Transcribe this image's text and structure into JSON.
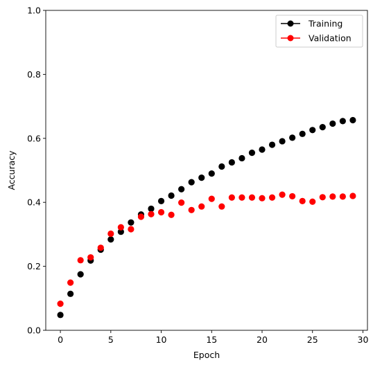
{
  "chart_data": {
    "type": "scatter",
    "title": "",
    "xlabel": "Epoch",
    "ylabel": "Accuracy",
    "xlim": [
      -1.45,
      30.45
    ],
    "ylim": [
      0.0,
      1.0
    ],
    "xticks": [
      0,
      5,
      10,
      15,
      20,
      25,
      30
    ],
    "yticks": [
      0.0,
      0.2,
      0.4,
      0.6,
      0.8,
      1.0
    ],
    "grid": false,
    "legend_position": "top-right",
    "x": [
      0,
      1,
      2,
      3,
      4,
      5,
      6,
      7,
      8,
      9,
      10,
      11,
      12,
      13,
      14,
      15,
      16,
      17,
      18,
      19,
      20,
      21,
      22,
      23,
      24,
      25,
      26,
      27,
      28,
      29
    ],
    "series": [
      {
        "name": "Training",
        "color": "#000000",
        "values": [
          0.048,
          0.114,
          0.175,
          0.218,
          0.252,
          0.284,
          0.308,
          0.337,
          0.362,
          0.38,
          0.404,
          0.421,
          0.441,
          0.463,
          0.477,
          0.49,
          0.512,
          0.525,
          0.538,
          0.555,
          0.565,
          0.58,
          0.591,
          0.602,
          0.614,
          0.626,
          0.635,
          0.646,
          0.654,
          0.657
        ]
      },
      {
        "name": "Validation",
        "color": "#ff0000",
        "values": [
          0.083,
          0.149,
          0.219,
          0.228,
          0.258,
          0.302,
          0.322,
          0.316,
          0.355,
          0.363,
          0.369,
          0.361,
          0.399,
          0.376,
          0.387,
          0.411,
          0.387,
          0.415,
          0.415,
          0.415,
          0.413,
          0.415,
          0.424,
          0.419,
          0.404,
          0.402,
          0.416,
          0.418,
          0.418,
          0.42
        ]
      }
    ]
  }
}
